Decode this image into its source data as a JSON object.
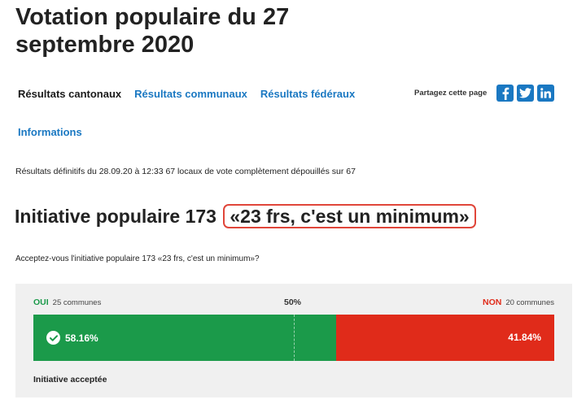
{
  "page": {
    "title": "Votation populaire du 27 septembre 2020"
  },
  "nav": {
    "tabs": [
      {
        "label": "Résultats cantonaux",
        "active": true
      },
      {
        "label": "Résultats communaux",
        "active": false
      },
      {
        "label": "Résultats fédéraux",
        "active": false
      },
      {
        "label": "Informations",
        "active": false
      }
    ]
  },
  "share": {
    "label": "Partagez cette page",
    "icons": [
      "facebook-icon",
      "twitter-icon",
      "linkedin-icon"
    ],
    "color": "#1a78c2"
  },
  "results": {
    "meta": "Résultats définitifs du 28.09.20 à 12:33 67 locaux de vote complètement dépouillés sur 67"
  },
  "initiative": {
    "prefix": "Initiative populaire 173",
    "name": "«23 frs, c'est un minimum»",
    "highlight_color": "#e0463a",
    "question": "Acceptez-vous l'initiative populaire 173 «23 frs, c'est un minimum»?"
  },
  "vote": {
    "yes": {
      "label": "OUI",
      "communes": "25 communes",
      "percent": 58.16,
      "display": "58.16%",
      "color": "#1b9a4a"
    },
    "no": {
      "label": "NON",
      "communes": "20 communes",
      "percent": 41.84,
      "display": "41.84%",
      "color": "#e02b1a"
    },
    "midpoint_label": "50%",
    "outcome": "Initiative acceptée"
  }
}
